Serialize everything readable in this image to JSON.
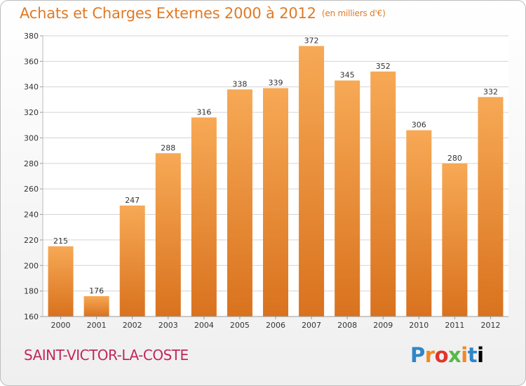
{
  "header": {
    "title": "Achats et Charges Externes 2000 à 2012",
    "unit": "(en milliers d'€)"
  },
  "footer": {
    "city": "SAINT-VICTOR-LA-COSTE",
    "logo": "Proxiti"
  },
  "colors": {
    "bar_light": "#f7a955",
    "bar_dark": "#d9721e",
    "title": "#e07a25",
    "city": "#c1275a",
    "grid": "#d4d4d4"
  },
  "chart_data": {
    "type": "bar",
    "title": "Achats et Charges Externes 2000 à 2012",
    "subtitle": "(en milliers d'€)",
    "categories": [
      "2000",
      "2001",
      "2002",
      "2003",
      "2004",
      "2005",
      "2006",
      "2007",
      "2008",
      "2009",
      "2010",
      "2011",
      "2012"
    ],
    "values": [
      215,
      176,
      247,
      288,
      316,
      338,
      339,
      372,
      345,
      352,
      306,
      280,
      332
    ],
    "ylim": [
      160,
      380
    ],
    "yticks": [
      160,
      180,
      200,
      220,
      240,
      260,
      280,
      300,
      320,
      340,
      360,
      380
    ],
    "grid": true,
    "data_labels": true
  }
}
